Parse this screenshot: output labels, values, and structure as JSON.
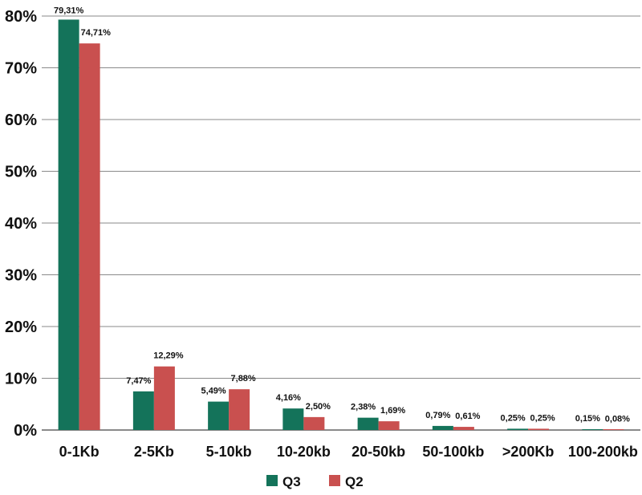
{
  "chart_data": {
    "type": "bar",
    "categories": [
      "0-1Kb",
      "2-5Kb",
      "5-10kb",
      "10-20kb",
      "20-50kb",
      "50-100kb",
      ">200Kb",
      "100-200kb"
    ],
    "series": [
      {
        "name": "Q3",
        "color": "#14735a",
        "values": [
          79.31,
          7.47,
          5.49,
          4.16,
          2.38,
          0.79,
          0.25,
          0.15
        ],
        "labels": [
          "79,31%",
          "7,47%",
          "5,49%",
          "4,16%",
          "2,38%",
          "0,79%",
          "0,25%",
          "0,15%"
        ]
      },
      {
        "name": "Q2",
        "color": "#c9504f",
        "values": [
          74.71,
          12.29,
          7.88,
          2.5,
          1.69,
          0.61,
          0.25,
          0.08
        ],
        "labels": [
          "74,71%",
          "12,29%",
          "7,88%",
          "2,50%",
          "1,69%",
          "0,61%",
          "0,25%",
          "0,08%"
        ]
      }
    ],
    "yticks": [
      "0%",
      "10%",
      "20%",
      "30%",
      "40%",
      "50%",
      "60%",
      "70%",
      "80%"
    ],
    "ylim": [
      0,
      80
    ],
    "grid": true,
    "legend": "bottom-center"
  }
}
